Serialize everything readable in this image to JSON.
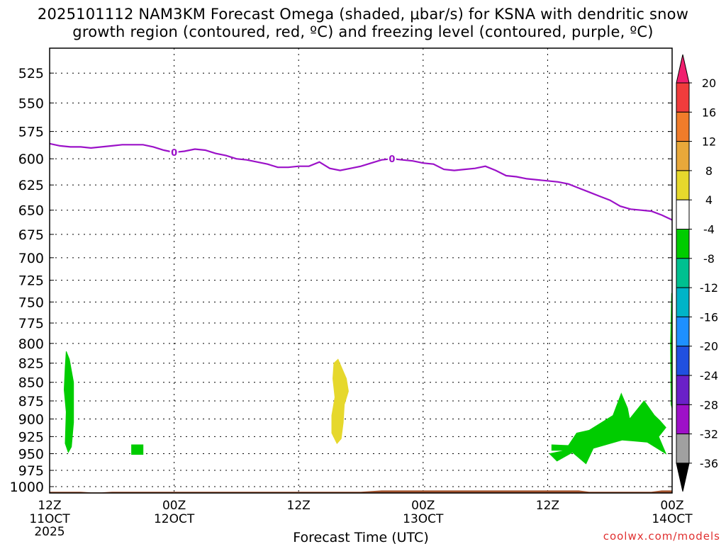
{
  "title_line_1": "2025101112 NAM3KM Forecast Omega (shaded, μbar/s) for KSNA with dendritic snow",
  "title_line_2": "growth region (contoured, red, ºC) and freezing level (contoured, purple, ºC)",
  "credit": "coolwx.com/models",
  "chart_data": {
    "type": "time-height cross section",
    "title": "2025101112 NAM3KM Forecast Omega (shaded, μbar/s) for KSNA with dendritic snow growth region (contoured, red, ºC) and freezing level (contoured, purple, ºC)",
    "xlabel": "Forecast Time (UTC)",
    "ylabel": "",
    "x_range_hours": [
      0,
      60
    ],
    "x_ticks": [
      {
        "hour": 0,
        "label": "12Z",
        "sublabel": "11OCT",
        "year": "2025"
      },
      {
        "hour": 12,
        "label": "00Z",
        "sublabel": "12OCT",
        "year": ""
      },
      {
        "hour": 24,
        "label": "12Z",
        "sublabel": "",
        "year": ""
      },
      {
        "hour": 36,
        "label": "00Z",
        "sublabel": "13OCT",
        "year": ""
      },
      {
        "hour": 48,
        "label": "12Z",
        "sublabel": "",
        "year": ""
      },
      {
        "hour": 60,
        "label": "00Z",
        "sublabel": "14OCT",
        "year": ""
      }
    ],
    "y_range_hpa": [
      1010,
      505
    ],
    "y_scale": "log-pressure",
    "y_ticks": [
      525,
      550,
      575,
      600,
      625,
      650,
      675,
      700,
      725,
      750,
      775,
      800,
      825,
      850,
      875,
      900,
      925,
      950,
      975,
      1000
    ],
    "grid": true,
    "colorbar": {
      "position": "right",
      "levels": [
        20,
        16,
        12,
        8,
        4,
        -4,
        -8,
        -12,
        -16,
        -20,
        -24,
        -28,
        -32,
        -36
      ],
      "colors": [
        "#f01f6e",
        "#f03c3c",
        "#f07c2a",
        "#e8a83a",
        "#e6d82c",
        "#ffffff",
        "#00cc00",
        "#00c090",
        "#00b4c8",
        "#1e90ff",
        "#2050e0",
        "#6a20c8",
        "#9e10c8",
        "#a0a0a0",
        "#000000"
      ]
    },
    "freezing_level": {
      "label": "0",
      "color": "#9b11c8",
      "points": [
        [
          0,
          586
        ],
        [
          1,
          588
        ],
        [
          2,
          589
        ],
        [
          3,
          589
        ],
        [
          4,
          590
        ],
        [
          5,
          589
        ],
        [
          6,
          588
        ],
        [
          7,
          587
        ],
        [
          8,
          587
        ],
        [
          9,
          587
        ],
        [
          10,
          589
        ],
        [
          11,
          592
        ],
        [
          12,
          594
        ],
        [
          13,
          593
        ],
        [
          14,
          591
        ],
        [
          15,
          592
        ],
        [
          16,
          595
        ],
        [
          17,
          597
        ],
        [
          18,
          600
        ],
        [
          19,
          601
        ],
        [
          20,
          603
        ],
        [
          21,
          605
        ],
        [
          22,
          608
        ],
        [
          23,
          608
        ],
        [
          24,
          607
        ],
        [
          25,
          607
        ],
        [
          26,
          603
        ],
        [
          27,
          609
        ],
        [
          28,
          611
        ],
        [
          29,
          609
        ],
        [
          30,
          607
        ],
        [
          31,
          604
        ],
        [
          32,
          601
        ],
        [
          33,
          600
        ],
        [
          34,
          601
        ],
        [
          35,
          602
        ],
        [
          36,
          604
        ],
        [
          37,
          605
        ],
        [
          38,
          610
        ],
        [
          39,
          611
        ],
        [
          40,
          610
        ],
        [
          41,
          609
        ],
        [
          42,
          607
        ],
        [
          43,
          611
        ],
        [
          44,
          616
        ],
        [
          45,
          617
        ],
        [
          46,
          619
        ],
        [
          47,
          620
        ],
        [
          48,
          621
        ],
        [
          49,
          622
        ],
        [
          50,
          624
        ],
        [
          51,
          628
        ],
        [
          52,
          632
        ],
        [
          53,
          636
        ],
        [
          54,
          640
        ],
        [
          55,
          646
        ],
        [
          56,
          649
        ],
        [
          57,
          650
        ],
        [
          58,
          651
        ],
        [
          59,
          655
        ],
        [
          60,
          660
        ]
      ]
    },
    "omega_regions": [
      {
        "level": "-4 to -8 μbar/s",
        "color": "#00cc00",
        "points": [
          [
            1.6,
            810
          ],
          [
            1.9,
            820
          ],
          [
            2.3,
            850
          ],
          [
            2.3,
            905
          ],
          [
            2.1,
            940
          ],
          [
            1.8,
            948
          ],
          [
            1.5,
            935
          ],
          [
            1.6,
            890
          ],
          [
            1.4,
            860
          ],
          [
            1.5,
            830
          ]
        ]
      },
      {
        "level": "-4 to -8 μbar/s",
        "color": "#00cc00",
        "points": [
          [
            7.9,
            937
          ],
          [
            9.0,
            937
          ],
          [
            9.0,
            951
          ],
          [
            7.9,
            951
          ]
        ]
      },
      {
        "level": "4 to 8 μbar/s",
        "color": "#e6d82c",
        "points": [
          [
            27.8,
            820
          ],
          [
            28.6,
            845
          ],
          [
            28.8,
            862
          ],
          [
            28.4,
            880
          ],
          [
            28.3,
            905
          ],
          [
            28.1,
            928
          ],
          [
            27.7,
            935
          ],
          [
            27.2,
            920
          ],
          [
            27.2,
            895
          ],
          [
            27.5,
            870
          ],
          [
            27.3,
            845
          ],
          [
            27.4,
            825
          ]
        ]
      },
      {
        "level": "-4 to -8 μbar/s",
        "color": "#00cc00",
        "points": [
          [
            48.4,
            937
          ],
          [
            50.0,
            938
          ],
          [
            50.8,
            920
          ],
          [
            52.0,
            916
          ],
          [
            54.3,
            895
          ],
          [
            55.1,
            865
          ],
          [
            55.7,
            885
          ],
          [
            55.9,
            900
          ],
          [
            57.3,
            875
          ],
          [
            58.3,
            895
          ],
          [
            58.8,
            902
          ],
          [
            59.4,
            912
          ],
          [
            58.7,
            925
          ],
          [
            59.4,
            950
          ],
          [
            57.6,
            933
          ],
          [
            55.2,
            930
          ],
          [
            52.4,
            942
          ],
          [
            51.7,
            965
          ],
          [
            50.4,
            948
          ],
          [
            48.9,
            961
          ],
          [
            48.2,
            950
          ],
          [
            49.8,
            945
          ],
          [
            48.4,
            945
          ]
        ]
      },
      {
        "level": "-4 to -8 μbar/s",
        "color": "#00cc00",
        "points": [
          [
            59.95,
            740
          ],
          [
            60,
            740
          ],
          [
            60,
            885
          ],
          [
            59.9,
            880
          ],
          [
            59.85,
            800
          ]
        ]
      }
    ],
    "terrain": {
      "color": "#a0522d",
      "top_pressure_hpa": [
        [
          0,
          1008
        ],
        [
          3,
          1008
        ],
        [
          4,
          1009
        ],
        [
          5,
          1009
        ],
        [
          6,
          1008
        ],
        [
          10,
          1008
        ],
        [
          30,
          1008
        ],
        [
          32,
          1006
        ],
        [
          51,
          1006
        ],
        [
          52,
          1008
        ],
        [
          58,
          1008
        ],
        [
          59,
          1006
        ],
        [
          60,
          1006
        ]
      ]
    }
  }
}
